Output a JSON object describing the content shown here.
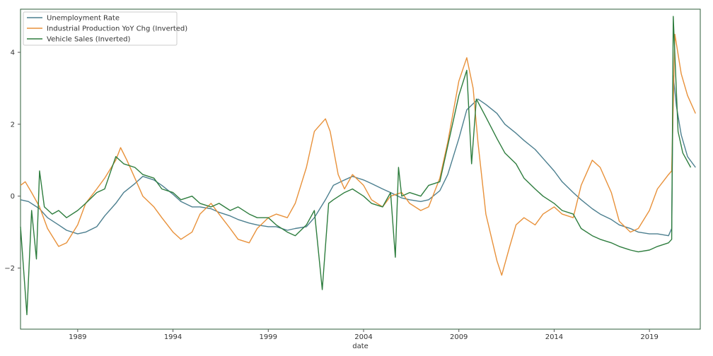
{
  "chart_data": {
    "type": "line",
    "title": "",
    "xlabel": "date",
    "ylabel": "",
    "xlim": [
      "1986-01",
      "2021-09"
    ],
    "ylim": [
      -3.7,
      5.2
    ],
    "x_ticks": [
      "1989",
      "1994",
      "1999",
      "2004",
      "2009",
      "2014",
      "2019"
    ],
    "y_ticks": [
      -2,
      0,
      2,
      4
    ],
    "y_tick_labels": [
      "−2",
      "0",
      "2",
      "4"
    ],
    "grid": false,
    "legend_position": "top-left",
    "series": [
      {
        "name": "Unemployment Rate",
        "color": "#4c7f8f",
        "points": [
          [
            "1986-01",
            -0.1
          ],
          [
            "1986-06",
            -0.15
          ],
          [
            "1987-01",
            -0.35
          ],
          [
            "1987-06",
            -0.6
          ],
          [
            "1988-01",
            -0.8
          ],
          [
            "1988-06",
            -0.95
          ],
          [
            "1989-01",
            -1.05
          ],
          [
            "1989-06",
            -1.0
          ],
          [
            "1990-01",
            -0.85
          ],
          [
            "1990-06",
            -0.55
          ],
          [
            "1991-01",
            -0.2
          ],
          [
            "1991-06",
            0.1
          ],
          [
            "1992-01",
            0.35
          ],
          [
            "1992-06",
            0.55
          ],
          [
            "1993-01",
            0.45
          ],
          [
            "1993-06",
            0.3
          ],
          [
            "1994-01",
            0.05
          ],
          [
            "1994-06",
            -0.15
          ],
          [
            "1995-01",
            -0.3
          ],
          [
            "1995-06",
            -0.3
          ],
          [
            "1996-01",
            -0.35
          ],
          [
            "1996-06",
            -0.45
          ],
          [
            "1997-01",
            -0.55
          ],
          [
            "1997-06",
            -0.65
          ],
          [
            "1998-01",
            -0.75
          ],
          [
            "1998-06",
            -0.8
          ],
          [
            "1999-01",
            -0.85
          ],
          [
            "1999-06",
            -0.85
          ],
          [
            "2000-01",
            -0.95
          ],
          [
            "2000-06",
            -0.9
          ],
          [
            "2001-01",
            -0.85
          ],
          [
            "2001-06",
            -0.6
          ],
          [
            "2002-01",
            -0.1
          ],
          [
            "2002-06",
            0.3
          ],
          [
            "2003-01",
            0.45
          ],
          [
            "2003-06",
            0.55
          ],
          [
            "2004-01",
            0.45
          ],
          [
            "2004-06",
            0.35
          ],
          [
            "2005-01",
            0.2
          ],
          [
            "2005-06",
            0.1
          ],
          [
            "2006-01",
            -0.05
          ],
          [
            "2006-06",
            -0.1
          ],
          [
            "2007-01",
            -0.15
          ],
          [
            "2007-06",
            -0.1
          ],
          [
            "2008-01",
            0.15
          ],
          [
            "2008-06",
            0.6
          ],
          [
            "2009-01",
            1.6
          ],
          [
            "2009-06",
            2.4
          ],
          [
            "2010-01",
            2.7
          ],
          [
            "2010-06",
            2.55
          ],
          [
            "2011-01",
            2.3
          ],
          [
            "2011-06",
            2.0
          ],
          [
            "2012-01",
            1.75
          ],
          [
            "2012-06",
            1.55
          ],
          [
            "2013-01",
            1.3
          ],
          [
            "2013-06",
            1.05
          ],
          [
            "2014-01",
            0.7
          ],
          [
            "2014-06",
            0.4
          ],
          [
            "2015-01",
            0.1
          ],
          [
            "2015-06",
            -0.1
          ],
          [
            "2016-01",
            -0.35
          ],
          [
            "2016-06",
            -0.5
          ],
          [
            "2017-01",
            -0.65
          ],
          [
            "2017-06",
            -0.8
          ],
          [
            "2018-01",
            -0.9
          ],
          [
            "2018-06",
            -1.0
          ],
          [
            "2019-01",
            -1.05
          ],
          [
            "2019-06",
            -1.05
          ],
          [
            "2020-01",
            -1.1
          ],
          [
            "2020-03",
            -0.9
          ],
          [
            "2020-04",
            3.35
          ],
          [
            "2020-06",
            2.5
          ],
          [
            "2020-09",
            1.7
          ],
          [
            "2021-01",
            1.1
          ],
          [
            "2021-06",
            0.8
          ]
        ]
      },
      {
        "name": "Industrial Production YoY Chg (Inverted)",
        "color": "#e8913a",
        "points": [
          [
            "1986-01",
            0.3
          ],
          [
            "1986-04",
            0.4
          ],
          [
            "1986-08",
            0.1
          ],
          [
            "1987-01",
            -0.3
          ],
          [
            "1987-06",
            -0.9
          ],
          [
            "1988-01",
            -1.4
          ],
          [
            "1988-06",
            -1.3
          ],
          [
            "1989-01",
            -0.8
          ],
          [
            "1989-06",
            -0.2
          ],
          [
            "1990-01",
            0.2
          ],
          [
            "1990-06",
            0.5
          ],
          [
            "1991-01",
            1.0
          ],
          [
            "1991-04",
            1.35
          ],
          [
            "1991-08",
            1.0
          ],
          [
            "1992-01",
            0.5
          ],
          [
            "1992-06",
            0.0
          ],
          [
            "1993-01",
            -0.3
          ],
          [
            "1993-06",
            -0.6
          ],
          [
            "1994-01",
            -1.0
          ],
          [
            "1994-06",
            -1.2
          ],
          [
            "1995-01",
            -1.0
          ],
          [
            "1995-06",
            -0.5
          ],
          [
            "1996-01",
            -0.2
          ],
          [
            "1996-06",
            -0.5
          ],
          [
            "1997-01",
            -0.9
          ],
          [
            "1997-06",
            -1.2
          ],
          [
            "1998-01",
            -1.3
          ],
          [
            "1998-06",
            -0.9
          ],
          [
            "1999-01",
            -0.6
          ],
          [
            "1999-06",
            -0.5
          ],
          [
            "2000-01",
            -0.6
          ],
          [
            "2000-06",
            -0.2
          ],
          [
            "2001-01",
            0.8
          ],
          [
            "2001-06",
            1.8
          ],
          [
            "2002-01",
            2.15
          ],
          [
            "2002-04",
            1.8
          ],
          [
            "2002-09",
            0.6
          ],
          [
            "2003-01",
            0.2
          ],
          [
            "2003-06",
            0.6
          ],
          [
            "2004-01",
            0.3
          ],
          [
            "2004-06",
            -0.1
          ],
          [
            "2005-01",
            -0.3
          ],
          [
            "2005-06",
            0.0
          ],
          [
            "2006-01",
            0.1
          ],
          [
            "2006-06",
            -0.2
          ],
          [
            "2007-01",
            -0.4
          ],
          [
            "2007-06",
            -0.3
          ],
          [
            "2008-01",
            0.5
          ],
          [
            "2008-06",
            1.5
          ],
          [
            "2009-01",
            3.2
          ],
          [
            "2009-06",
            3.85
          ],
          [
            "2009-10",
            3.0
          ],
          [
            "2010-01",
            1.5
          ],
          [
            "2010-06",
            -0.5
          ],
          [
            "2011-01",
            -1.8
          ],
          [
            "2011-04",
            -2.2
          ],
          [
            "2011-09",
            -1.4
          ],
          [
            "2012-01",
            -0.8
          ],
          [
            "2012-06",
            -0.6
          ],
          [
            "2013-01",
            -0.8
          ],
          [
            "2013-06",
            -0.5
          ],
          [
            "2014-01",
            -0.3
          ],
          [
            "2014-06",
            -0.5
          ],
          [
            "2015-01",
            -0.6
          ],
          [
            "2015-06",
            0.3
          ],
          [
            "2016-01",
            1.0
          ],
          [
            "2016-06",
            0.8
          ],
          [
            "2017-01",
            0.1
          ],
          [
            "2017-06",
            -0.7
          ],
          [
            "2018-01",
            -1.0
          ],
          [
            "2018-06",
            -0.9
          ],
          [
            "2019-01",
            -0.4
          ],
          [
            "2019-06",
            0.2
          ],
          [
            "2020-01",
            0.6
          ],
          [
            "2020-03",
            0.7
          ],
          [
            "2020-05",
            4.5
          ],
          [
            "2020-09",
            3.4
          ],
          [
            "2021-01",
            2.8
          ],
          [
            "2021-06",
            2.3
          ]
        ]
      },
      {
        "name": "Vehicle Sales (Inverted)",
        "color": "#2e7d3e",
        "points": [
          [
            "1986-01",
            -0.85
          ],
          [
            "1986-05",
            -3.3
          ],
          [
            "1986-08",
            -0.4
          ],
          [
            "1986-11",
            -1.75
          ],
          [
            "1987-01",
            0.7
          ],
          [
            "1987-04",
            -0.3
          ],
          [
            "1987-09",
            -0.5
          ],
          [
            "1988-01",
            -0.4
          ],
          [
            "1988-06",
            -0.6
          ],
          [
            "1989-01",
            -0.4
          ],
          [
            "1989-06",
            -0.2
          ],
          [
            "1990-01",
            0.1
          ],
          [
            "1990-06",
            0.2
          ],
          [
            "1991-01",
            1.1
          ],
          [
            "1991-06",
            0.9
          ],
          [
            "1992-01",
            0.8
          ],
          [
            "1992-06",
            0.6
          ],
          [
            "1993-01",
            0.5
          ],
          [
            "1993-06",
            0.2
          ],
          [
            "1994-01",
            0.1
          ],
          [
            "1994-06",
            -0.1
          ],
          [
            "1995-01",
            0.0
          ],
          [
            "1995-06",
            -0.2
          ],
          [
            "1996-01",
            -0.3
          ],
          [
            "1996-06",
            -0.2
          ],
          [
            "1997-01",
            -0.4
          ],
          [
            "1997-06",
            -0.3
          ],
          [
            "1998-01",
            -0.5
          ],
          [
            "1998-06",
            -0.6
          ],
          [
            "1999-01",
            -0.6
          ],
          [
            "1999-06",
            -0.8
          ],
          [
            "2000-01",
            -1.0
          ],
          [
            "2000-06",
            -1.1
          ],
          [
            "2001-01",
            -0.8
          ],
          [
            "2001-06",
            -0.4
          ],
          [
            "2001-11",
            -2.6
          ],
          [
            "2002-03",
            -0.2
          ],
          [
            "2002-06",
            -0.1
          ],
          [
            "2003-01",
            0.1
          ],
          [
            "2003-06",
            0.2
          ],
          [
            "2004-01",
            0.0
          ],
          [
            "2004-06",
            -0.2
          ],
          [
            "2005-01",
            -0.3
          ],
          [
            "2005-06",
            0.1
          ],
          [
            "2005-09",
            -1.7
          ],
          [
            "2005-11",
            0.8
          ],
          [
            "2006-01",
            0.0
          ],
          [
            "2006-06",
            0.1
          ],
          [
            "2007-01",
            0.0
          ],
          [
            "2007-06",
            0.3
          ],
          [
            "2008-01",
            0.4
          ],
          [
            "2008-06",
            1.4
          ],
          [
            "2009-01",
            2.8
          ],
          [
            "2009-06",
            3.5
          ],
          [
            "2009-09",
            0.9
          ],
          [
            "2009-12",
            2.7
          ],
          [
            "2010-06",
            2.2
          ],
          [
            "2011-01",
            1.6
          ],
          [
            "2011-06",
            1.2
          ],
          [
            "2012-01",
            0.9
          ],
          [
            "2012-06",
            0.5
          ],
          [
            "2013-01",
            0.2
          ],
          [
            "2013-06",
            0.0
          ],
          [
            "2014-01",
            -0.2
          ],
          [
            "2014-06",
            -0.4
          ],
          [
            "2015-01",
            -0.5
          ],
          [
            "2015-06",
            -0.9
          ],
          [
            "2016-01",
            -1.1
          ],
          [
            "2016-06",
            -1.2
          ],
          [
            "2017-01",
            -1.3
          ],
          [
            "2017-06",
            -1.4
          ],
          [
            "2018-01",
            -1.5
          ],
          [
            "2018-06",
            -1.55
          ],
          [
            "2019-01",
            -1.5
          ],
          [
            "2019-06",
            -1.4
          ],
          [
            "2020-01",
            -1.3
          ],
          [
            "2020-03",
            -1.2
          ],
          [
            "2020-04",
            5.0
          ],
          [
            "2020-07",
            1.8
          ],
          [
            "2020-10",
            1.2
          ],
          [
            "2021-03",
            0.8
          ]
        ]
      }
    ]
  }
}
